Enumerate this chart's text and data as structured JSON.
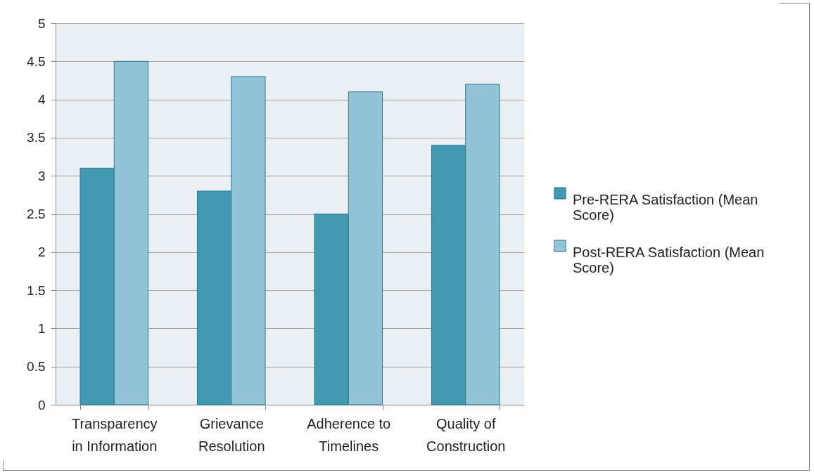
{
  "chart_data": {
    "type": "bar",
    "categories": [
      "Transparency in Information",
      "Grievance Resolution",
      "Adherence to Timelines",
      "Quality of Construction"
    ],
    "series": [
      {
        "name": "Pre-RERA Satisfaction (Mean Score)",
        "color": "#4198b0",
        "values": [
          3.1,
          2.8,
          2.5,
          3.4
        ]
      },
      {
        "name": "Post-RERA Satisfaction (Mean Score)",
        "color": "#93c3d6",
        "values": [
          4.5,
          4.3,
          4.1,
          4.2
        ]
      }
    ],
    "ylim": [
      0,
      5
    ],
    "yticks": [
      0,
      0.5,
      1,
      1.5,
      2,
      2.5,
      3,
      3.5,
      4,
      4.5,
      5
    ],
    "grid": "y",
    "legend": "right"
  }
}
